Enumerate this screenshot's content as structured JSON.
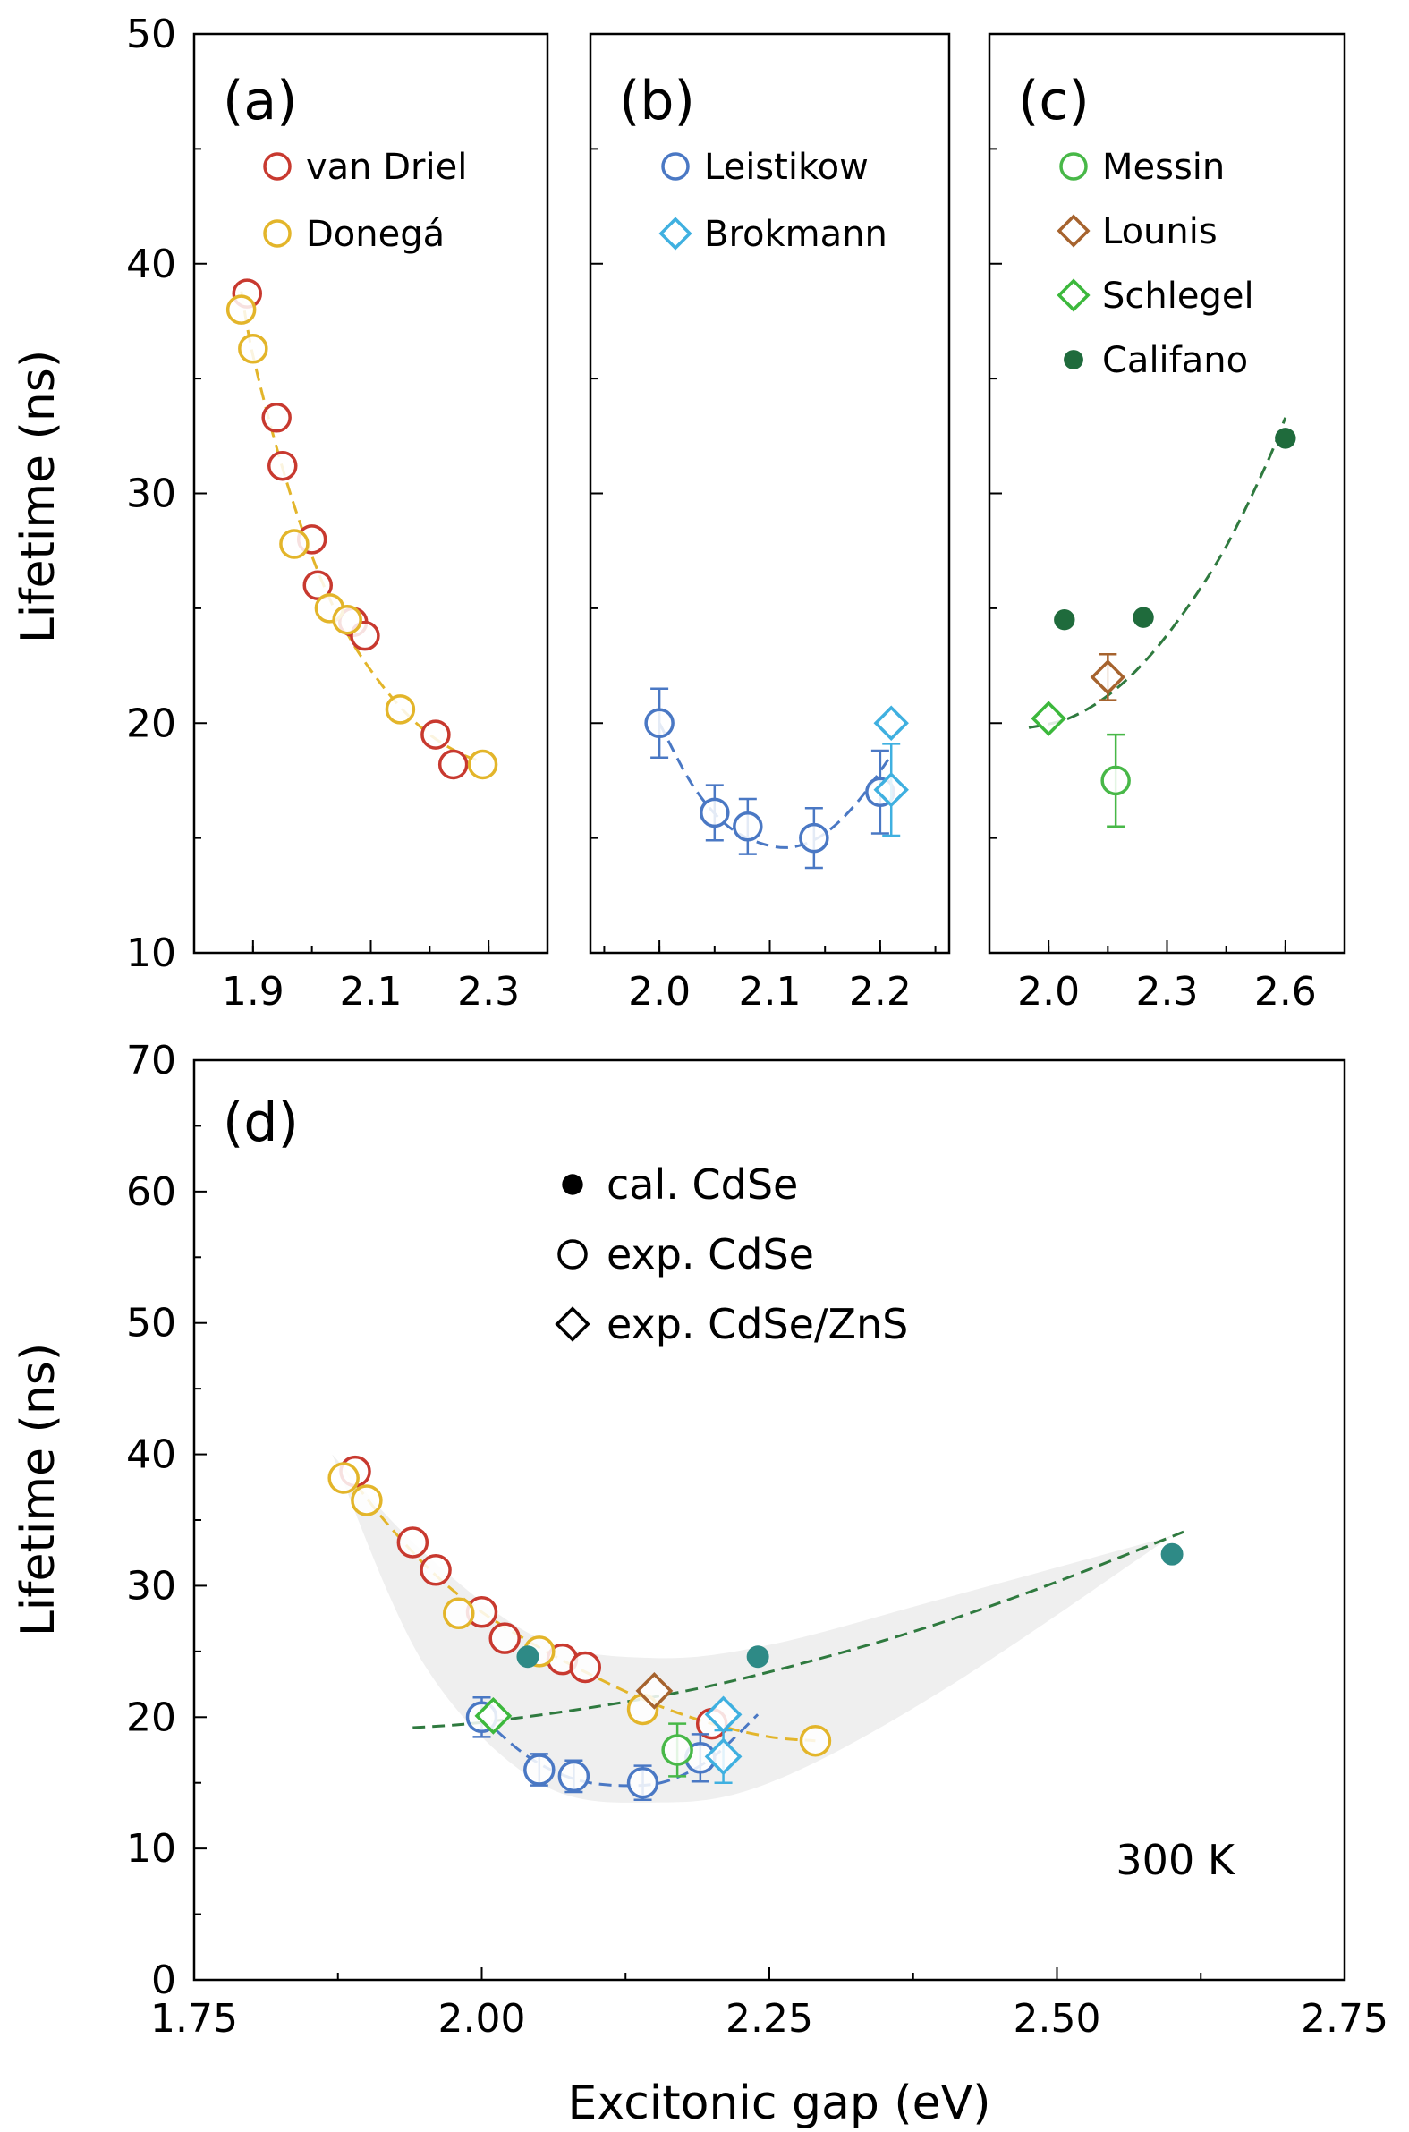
{
  "figure": {
    "ylabel_top": "Lifetime (ns)",
    "ylabel_bottom": "Lifetime (ns)",
    "xlabel": "Excitonic gap (eV)"
  },
  "colors": {
    "van_driel": "#c8392f",
    "donega": "#e3b52a",
    "leistikow": "#4a78c4",
    "brokmann": "#3fb0e0",
    "messin": "#48b848",
    "lounis": "#a6632e",
    "schlegel": "#3cb83c",
    "califano": "#1f6b3c",
    "califano_d": "#2e8a86",
    "fit_green": "#2f7a3f",
    "band": "#efefef"
  },
  "chart_data": [
    {
      "panel": "(a)",
      "type": "scatter",
      "xlim": [
        1.8,
        2.4
      ],
      "ylim": [
        10,
        50
      ],
      "xticks": [
        "1.9",
        "2.1",
        "2.3"
      ],
      "yticks": [
        "10",
        "20",
        "30",
        "40",
        "50"
      ],
      "legend_position": "top-right",
      "series": [
        {
          "name": "van Driel",
          "marker": "circle-open",
          "color": "van_driel",
          "x": [
            1.89,
            1.94,
            1.95,
            2.0,
            2.01,
            2.07,
            2.09,
            2.21,
            2.24
          ],
          "y": [
            38.7,
            33.3,
            31.2,
            28.0,
            26.0,
            24.4,
            23.8,
            19.5,
            18.2
          ]
        },
        {
          "name": "Donegá",
          "marker": "circle-open",
          "color": "donega",
          "x": [
            1.88,
            1.9,
            1.97,
            2.03,
            2.06,
            2.15,
            2.29
          ],
          "y": [
            38.0,
            36.3,
            27.8,
            25.0,
            24.5,
            20.6,
            18.2
          ]
        }
      ],
      "fit": {
        "color": "donega",
        "x": [
          1.88,
          1.9,
          1.94,
          1.98,
          2.02,
          2.06,
          2.1,
          2.15,
          2.2,
          2.25,
          2.29
        ],
        "y": [
          38.8,
          36.0,
          32.0,
          28.7,
          26.0,
          23.9,
          22.3,
          20.7,
          19.5,
          18.7,
          18.3
        ]
      }
    },
    {
      "panel": "(b)",
      "type": "scatter",
      "xlim": [
        1.9375,
        2.2625
      ],
      "ylim": [
        10,
        50
      ],
      "xticks": [
        "2.0",
        "2.1",
        "2.2"
      ],
      "yticks": [],
      "legend_position": "top-right",
      "series": [
        {
          "name": "Leistikow",
          "marker": "circle-open",
          "color": "leistikow",
          "x": [
            2.0,
            2.05,
            2.08,
            2.14,
            2.2
          ],
          "y": [
            20.0,
            16.1,
            15.5,
            15.0,
            17.0
          ],
          "yerr": [
            1.5,
            1.2,
            1.2,
            1.3,
            1.8
          ]
        },
        {
          "name": "Brokmann",
          "marker": "diamond-open",
          "color": "brokmann",
          "x": [
            2.21,
            2.21
          ],
          "y": [
            20.0,
            17.1
          ],
          "yerr": [
            0,
            2.0
          ]
        }
      ],
      "fit": {
        "color": "leistikow",
        "x": [
          2.0,
          2.03,
          2.06,
          2.09,
          2.12,
          2.15,
          2.18,
          2.21
        ],
        "y": [
          20.0,
          17.3,
          15.6,
          14.8,
          14.6,
          15.2,
          16.6,
          18.6
        ]
      }
    },
    {
      "panel": "(c)",
      "type": "scatter",
      "xlim": [
        1.85,
        2.75
      ],
      "ylim": [
        10,
        50
      ],
      "xticks": [
        "2.0",
        "2.3",
        "2.6"
      ],
      "yticks": [],
      "legend_position": "top-right",
      "series": [
        {
          "name": "Messin",
          "marker": "circle-open",
          "color": "messin",
          "x": [
            2.17
          ],
          "y": [
            17.5
          ],
          "yerr": [
            2.0
          ]
        },
        {
          "name": "Lounis",
          "marker": "diamond-open",
          "color": "lounis",
          "x": [
            2.15
          ],
          "y": [
            22.0
          ],
          "yerr": [
            1.0
          ]
        },
        {
          "name": "Schlegel",
          "marker": "diamond-open",
          "color": "schlegel",
          "x": [
            2.0
          ],
          "y": [
            20.2
          ],
          "yerr": [
            0
          ]
        },
        {
          "name": "Califano",
          "marker": "circle-filled",
          "color": "califano",
          "x": [
            2.04,
            2.24,
            2.6
          ],
          "y": [
            24.5,
            24.6,
            32.4
          ],
          "yerr": [
            0,
            0,
            0
          ]
        }
      ],
      "fit": {
        "color": "fit_green",
        "x": [
          1.95,
          2.05,
          2.15,
          2.25,
          2.35,
          2.45,
          2.55,
          2.6
        ],
        "y": [
          19.8,
          20.2,
          21.2,
          22.8,
          25.0,
          27.7,
          31.2,
          33.3
        ]
      }
    },
    {
      "panel": "(d)",
      "type": "scatter",
      "xlim": [
        1.75,
        2.75
      ],
      "ylim": [
        0,
        70
      ],
      "xticks": [
        "1.75",
        "2.00",
        "2.25",
        "2.50",
        "2.75"
      ],
      "yticks": [
        "0",
        "10",
        "20",
        "30",
        "40",
        "50",
        "60",
        "70"
      ],
      "annotation": "300 K",
      "legend_position": "top-center",
      "legend": [
        "cal. CdSe",
        "exp. CdSe",
        "exp. CdSe/ZnS"
      ],
      "series": [
        {
          "name": "van Driel",
          "marker": "circle-open",
          "color": "van_driel",
          "x": [
            1.89,
            1.94,
            1.96,
            2.0,
            2.02,
            2.07,
            2.09,
            2.2
          ],
          "y": [
            38.7,
            33.3,
            31.2,
            28.0,
            26.0,
            24.4,
            23.8,
            19.5
          ],
          "yerr": [
            0,
            0,
            0,
            0,
            0,
            0,
            0,
            0
          ]
        },
        {
          "name": "Donegá",
          "marker": "circle-open",
          "color": "donega",
          "x": [
            1.88,
            1.9,
            1.98,
            2.05,
            2.14,
            2.29
          ],
          "y": [
            38.2,
            36.5,
            27.9,
            25.0,
            20.6,
            18.2
          ],
          "yerr": [
            0,
            0,
            0,
            0,
            0,
            0
          ]
        },
        {
          "name": "Leistikow",
          "marker": "circle-open",
          "color": "leistikow",
          "x": [
            2.0,
            2.05,
            2.08,
            2.14,
            2.19
          ],
          "y": [
            20.0,
            16.0,
            15.5,
            15.0,
            16.9
          ],
          "yerr": [
            1.5,
            1.2,
            1.2,
            1.3,
            1.8
          ]
        },
        {
          "name": "Brokmann",
          "marker": "diamond-open",
          "color": "brokmann",
          "x": [
            2.21,
            2.21
          ],
          "y": [
            20.2,
            17.0
          ],
          "yerr": [
            0,
            2.0
          ]
        },
        {
          "name": "Messin",
          "marker": "circle-open",
          "color": "messin",
          "x": [
            2.17
          ],
          "y": [
            17.5
          ],
          "yerr": [
            2.0
          ]
        },
        {
          "name": "Lounis",
          "marker": "diamond-open",
          "color": "lounis",
          "x": [
            2.15
          ],
          "y": [
            22.0
          ],
          "yerr": [
            0
          ]
        },
        {
          "name": "Schlegel",
          "marker": "diamond-open",
          "color": "schlegel",
          "x": [
            2.01
          ],
          "y": [
            20.1
          ],
          "yerr": [
            0
          ]
        },
        {
          "name": "Califano",
          "marker": "circle-filled",
          "color": "califano_d",
          "x": [
            2.04,
            2.24,
            2.6
          ],
          "y": [
            24.6,
            24.6,
            32.4
          ],
          "yerr": [
            0,
            0,
            0
          ]
        }
      ],
      "fits": [
        {
          "color": "donega",
          "x": [
            1.88,
            1.92,
            1.96,
            2.0,
            2.05,
            2.1,
            2.15,
            2.2,
            2.25,
            2.29
          ],
          "y": [
            38.9,
            34.5,
            30.8,
            28.0,
            25.3,
            23.0,
            21.0,
            19.5,
            18.5,
            18.2
          ]
        },
        {
          "color": "leistikow",
          "x": [
            2.0,
            2.04,
            2.08,
            2.12,
            2.16,
            2.2,
            2.24
          ],
          "y": [
            20.0,
            17.0,
            15.3,
            14.8,
            15.1,
            16.9,
            20.2
          ]
        },
        {
          "color": "fit_green",
          "x": [
            1.94,
            2.0,
            2.1,
            2.2,
            2.3,
            2.4,
            2.5,
            2.61
          ],
          "y": [
            19.2,
            19.6,
            20.8,
            22.4,
            24.6,
            27.2,
            30.3,
            34.1
          ]
        }
      ],
      "band": {
        "upper": {
          "x": [
            1.87,
            1.95,
            2.05,
            2.15,
            2.25,
            2.4,
            2.6
          ],
          "y": [
            40.0,
            32.5,
            26.0,
            24.5,
            25.5,
            29.0,
            33.8
          ]
        },
        "lower": {
          "x": [
            1.87,
            1.95,
            2.05,
            2.15,
            2.25,
            2.4,
            2.6
          ],
          "y": [
            40.0,
            24.0,
            15.0,
            13.5,
            15.0,
            22.0,
            33.8
          ]
        }
      }
    }
  ]
}
